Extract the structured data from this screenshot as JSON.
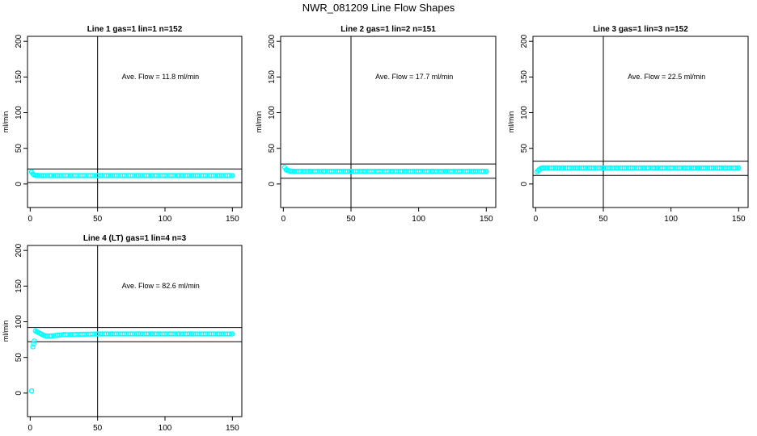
{
  "figure": {
    "title": "NWR_081209  Line Flow Shapes"
  },
  "chart_data": [
    {
      "type": "scatter",
      "title": "Line 1 gas=1 lin=1 n=152",
      "xlabel": "",
      "ylabel": "ml/min",
      "xlim": [
        -2,
        157
      ],
      "ylim": [
        -33,
        207
      ],
      "xticks": [
        0,
        50,
        100,
        150
      ],
      "yticks": [
        0,
        50,
        100,
        150,
        200
      ],
      "annotation": "Ave. Flow =  11.8  ml/min",
      "vline": 50,
      "hlines": [
        2,
        21
      ],
      "point_color": "#00ffff",
      "series": [
        {
          "x": [
            1,
            2,
            3,
            4,
            5,
            6,
            8,
            10,
            15,
            20,
            30,
            40,
            50,
            60,
            70,
            80,
            90,
            100,
            110,
            120,
            130,
            140,
            150
          ],
          "y": [
            17,
            14,
            12.5,
            12,
            12,
            11.8,
            11.8,
            11.8,
            11.8,
            11.8,
            11.8,
            11.8,
            11.8,
            11.8,
            11.8,
            11.8,
            11.8,
            11.8,
            11.8,
            11.8,
            11.8,
            11.8,
            11.8
          ]
        }
      ]
    },
    {
      "type": "scatter",
      "title": "Line 2 gas=1 lin=2 n=151",
      "xlabel": "",
      "ylabel": "ml/min",
      "xlim": [
        -2,
        157
      ],
      "ylim": [
        -33,
        207
      ],
      "xticks": [
        0,
        50,
        100,
        150
      ],
      "yticks": [
        0,
        50,
        100,
        150,
        200
      ],
      "annotation": "Ave. Flow =  17.7  ml/min",
      "vline": 50,
      "hlines": [
        8,
        28
      ],
      "point_color": "#00ffff",
      "series": [
        {
          "x": [
            1,
            2,
            3,
            4,
            5,
            6,
            8,
            10,
            15,
            20,
            30,
            40,
            50,
            60,
            70,
            80,
            90,
            100,
            110,
            120,
            130,
            140,
            150
          ],
          "y": [
            23,
            20,
            19,
            18.5,
            18,
            18,
            17.8,
            17.7,
            17.7,
            17.7,
            17.7,
            17.7,
            17.7,
            17.7,
            17.7,
            17.7,
            17.7,
            17.7,
            17.7,
            17.7,
            17.7,
            17.7,
            17.7
          ]
        }
      ]
    },
    {
      "type": "scatter",
      "title": "Line 3 gas=1 lin=3 n=152",
      "xlabel": "",
      "ylabel": "ml/min",
      "xlim": [
        -2,
        157
      ],
      "ylim": [
        -33,
        207
      ],
      "xticks": [
        0,
        50,
        100,
        150
      ],
      "yticks": [
        0,
        50,
        100,
        150,
        200
      ],
      "annotation": "Ave. Flow =  22.5  ml/min",
      "vline": 50,
      "hlines": [
        12,
        32
      ],
      "point_color": "#00ffff",
      "series": [
        {
          "x": [
            1,
            2,
            3,
            4,
            5,
            6,
            8,
            10,
            15,
            20,
            30,
            40,
            50,
            60,
            70,
            80,
            90,
            100,
            110,
            120,
            130,
            140,
            150
          ],
          "y": [
            17,
            19,
            21,
            22,
            22.5,
            22.5,
            22.5,
            22.5,
            22.5,
            22.5,
            22.5,
            22.5,
            22.5,
            22.5,
            22.5,
            22.5,
            22.5,
            22.5,
            22.5,
            22.5,
            22.5,
            22.5,
            22.5
          ]
        }
      ]
    },
    {
      "type": "scatter",
      "title": "Line 4 (LT) gas=1 lin=4 n=3",
      "xlabel": "",
      "ylabel": "ml/min",
      "xlim": [
        -2,
        157
      ],
      "ylim": [
        -33,
        207
      ],
      "xticks": [
        0,
        50,
        100,
        150
      ],
      "yticks": [
        0,
        50,
        100,
        150,
        200
      ],
      "annotation": "Ave. Flow =  82.6  ml/min",
      "vline": 50,
      "hlines": [
        72,
        92
      ],
      "point_color": "#00ffff",
      "series": [
        {
          "x": [
            1,
            2,
            3,
            4,
            5,
            6,
            8,
            10,
            12,
            15,
            20,
            25,
            30,
            40,
            50,
            60,
            70,
            80,
            90,
            100,
            110,
            120,
            130,
            140,
            150
          ],
          "y": [
            3,
            65,
            73,
            87,
            86,
            85,
            83,
            81,
            80,
            80,
            81,
            82,
            82,
            82.5,
            83,
            83,
            83,
            83,
            83,
            83,
            83,
            83,
            83,
            83,
            83
          ]
        }
      ]
    }
  ]
}
